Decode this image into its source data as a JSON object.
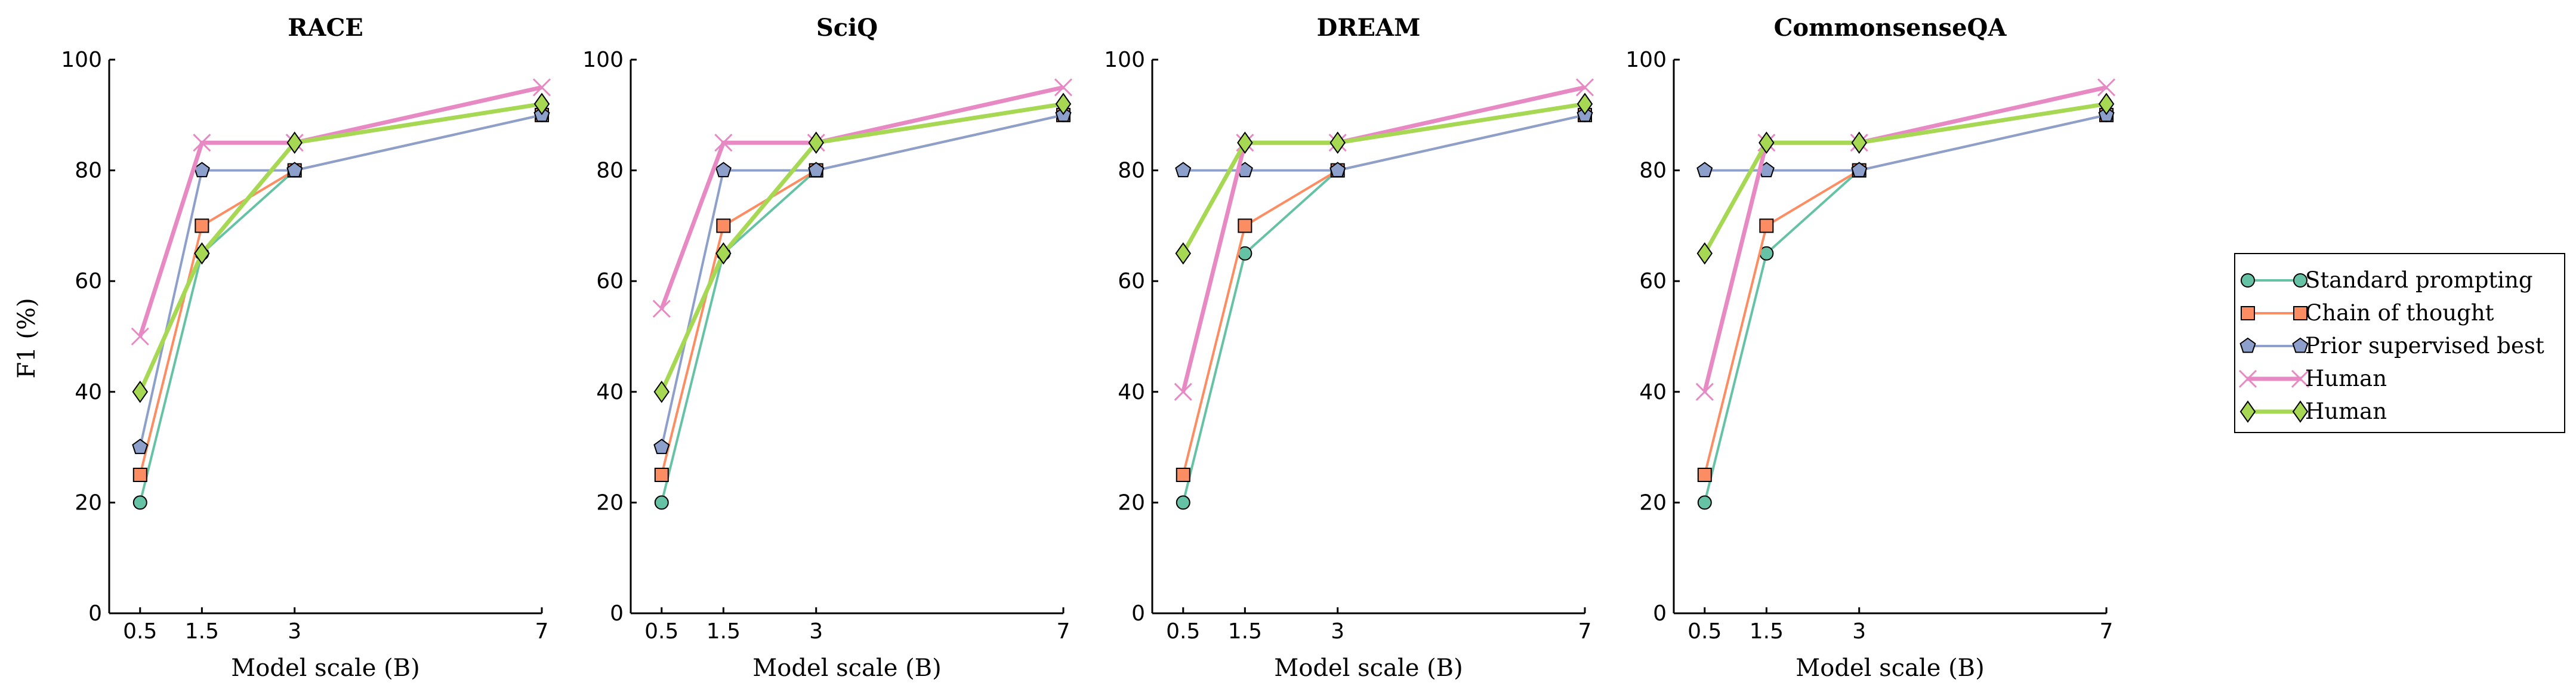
{
  "chart_data": {
    "type": "line",
    "ylabel": "F1 (%)",
    "xlabel": "Model scale (B)",
    "x": [
      0.5,
      1.5,
      3,
      7
    ],
    "xticks": [
      "0.5",
      "1.5",
      "3",
      "7"
    ],
    "xlim": [
      0,
      7
    ],
    "ylim": [
      0,
      100
    ],
    "yticks": [
      0,
      20,
      40,
      60,
      80,
      100
    ],
    "grid": false,
    "legend_position": "right",
    "series_styles": [
      {
        "name": "Standard prompting",
        "color": "#66c2a5",
        "marker": "circle",
        "line_width": 4
      },
      {
        "name": "Chain of thought",
        "color": "#fc8d62",
        "marker": "square",
        "line_width": 4
      },
      {
        "name": "Prior supervised best",
        "color": "#8da0cb",
        "marker": "pentagon",
        "line_width": 4
      },
      {
        "name": "Human",
        "color": "#e78ac3",
        "marker": "x",
        "line_width": 7
      },
      {
        "name": "Human",
        "color": "#a6d854",
        "marker": "diamond",
        "line_width": 7
      }
    ],
    "panels": [
      {
        "title": "RACE",
        "series": [
          {
            "name": "Standard prompting",
            "values": [
              20,
              65,
              80,
              90
            ]
          },
          {
            "name": "Chain of thought",
            "values": [
              25,
              70,
              80,
              90
            ]
          },
          {
            "name": "Prior supervised best",
            "values": [
              30,
              80,
              80,
              90
            ]
          },
          {
            "name": "Human",
            "values": [
              50,
              85,
              85,
              95
            ]
          },
          {
            "name": "Human",
            "values": [
              40,
              65,
              85,
              92
            ]
          }
        ]
      },
      {
        "title": "SciQ",
        "series": [
          {
            "name": "Standard prompting",
            "values": [
              20,
              65,
              80,
              90
            ]
          },
          {
            "name": "Chain of thought",
            "values": [
              25,
              70,
              80,
              90
            ]
          },
          {
            "name": "Prior supervised best",
            "values": [
              30,
              80,
              80,
              90
            ]
          },
          {
            "name": "Human",
            "values": [
              55,
              85,
              85,
              95
            ]
          },
          {
            "name": "Human",
            "values": [
              40,
              65,
              85,
              92
            ]
          }
        ]
      },
      {
        "title": "DREAM",
        "series": [
          {
            "name": "Standard prompting",
            "values": [
              20,
              65,
              80,
              90
            ]
          },
          {
            "name": "Chain of thought",
            "values": [
              25,
              70,
              80,
              90
            ]
          },
          {
            "name": "Prior supervised best",
            "values": [
              80,
              80,
              80,
              90
            ]
          },
          {
            "name": "Human",
            "values": [
              40,
              85,
              85,
              95
            ]
          },
          {
            "name": "Human",
            "values": [
              65,
              85,
              85,
              92
            ]
          }
        ]
      },
      {
        "title": "CommonsenseQA",
        "series": [
          {
            "name": "Standard prompting",
            "values": [
              20,
              65,
              80,
              90
            ]
          },
          {
            "name": "Chain of thought",
            "values": [
              25,
              70,
              80,
              90
            ]
          },
          {
            "name": "Prior supervised best",
            "values": [
              80,
              80,
              80,
              90
            ]
          },
          {
            "name": "Human",
            "values": [
              40,
              85,
              85,
              95
            ]
          },
          {
            "name": "Human",
            "values": [
              65,
              85,
              85,
              92
            ]
          }
        ]
      }
    ]
  }
}
